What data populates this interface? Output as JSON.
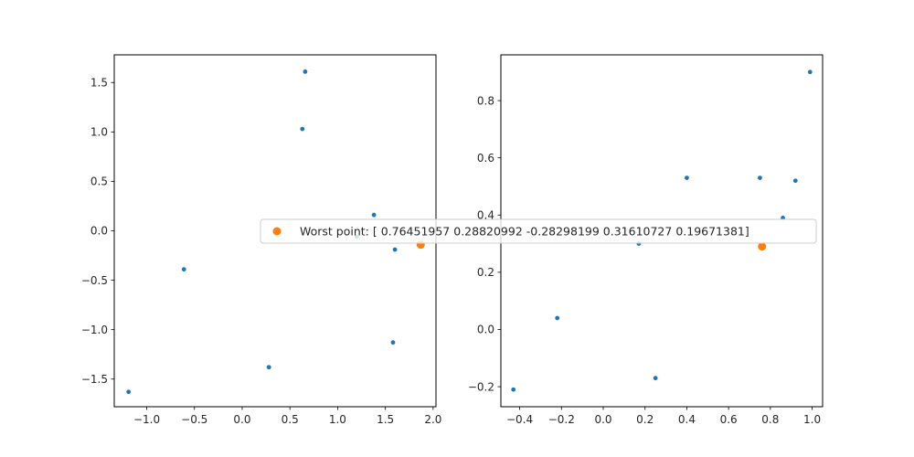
{
  "colors": {
    "series_points": "#1f77b4",
    "worst_point": "#ff7f0e",
    "axes": "#000000",
    "legend_border": "#cccccc"
  },
  "legend": {
    "label": "Worst point: [ 0.76451957  0.28820992 -0.28298199  0.31610727  0.19671381]",
    "placement": "center"
  },
  "chart_data": [
    {
      "type": "scatter",
      "xlim": [
        -1.34,
        2.03
      ],
      "ylim": [
        -1.78,
        1.78
      ],
      "xticks": [
        -1.0,
        -0.5,
        0.0,
        0.5,
        1.0,
        1.5,
        2.0
      ],
      "xtick_labels": [
        "−1.0",
        "−0.5",
        "0.0",
        "0.5",
        "1.0",
        "1.5",
        "2.0"
      ],
      "yticks": [
        -1.5,
        -1.0,
        -0.5,
        0.0,
        0.5,
        1.0,
        1.5
      ],
      "ytick_labels": [
        "−1.5",
        "−1.0",
        "−0.5",
        "0.0",
        "0.5",
        "1.0",
        "1.5"
      ],
      "grid": false,
      "points": [
        {
          "x": -1.19,
          "y": -1.63
        },
        {
          "x": -0.61,
          "y": -0.39
        },
        {
          "x": 0.28,
          "y": -1.38
        },
        {
          "x": 0.63,
          "y": 1.03
        },
        {
          "x": 0.66,
          "y": 1.61
        },
        {
          "x": 1.2,
          "y": -0.06
        },
        {
          "x": 1.38,
          "y": 0.16
        },
        {
          "x": 1.58,
          "y": -1.13
        },
        {
          "x": 1.6,
          "y": -0.19
        }
      ],
      "worst_point": {
        "x": 1.87,
        "y": -0.14
      }
    },
    {
      "type": "scatter",
      "xlim": [
        -0.49,
        1.05
      ],
      "ylim": [
        -0.27,
        0.96
      ],
      "xticks": [
        -0.4,
        -0.2,
        0.0,
        0.2,
        0.4,
        0.6,
        0.8,
        1.0
      ],
      "xtick_labels": [
        "−0.4",
        "−0.2",
        "0.0",
        "0.2",
        "0.4",
        "0.6",
        "0.8",
        "1.0"
      ],
      "yticks": [
        -0.2,
        0.0,
        0.2,
        0.4,
        0.6,
        0.8
      ],
      "ytick_labels": [
        "−0.2",
        "0.0",
        "0.2",
        "0.4",
        "0.6",
        "0.8"
      ],
      "grid": false,
      "points": [
        {
          "x": -0.43,
          "y": -0.21
        },
        {
          "x": -0.22,
          "y": 0.04
        },
        {
          "x": 0.17,
          "y": 0.3
        },
        {
          "x": 0.25,
          "y": -0.17
        },
        {
          "x": 0.4,
          "y": 0.53
        },
        {
          "x": 0.75,
          "y": 0.53
        },
        {
          "x": 0.86,
          "y": 0.39
        },
        {
          "x": 0.92,
          "y": 0.52
        },
        {
          "x": 0.99,
          "y": 0.9
        }
      ],
      "worst_point": {
        "x": 0.76,
        "y": 0.29
      }
    }
  ]
}
